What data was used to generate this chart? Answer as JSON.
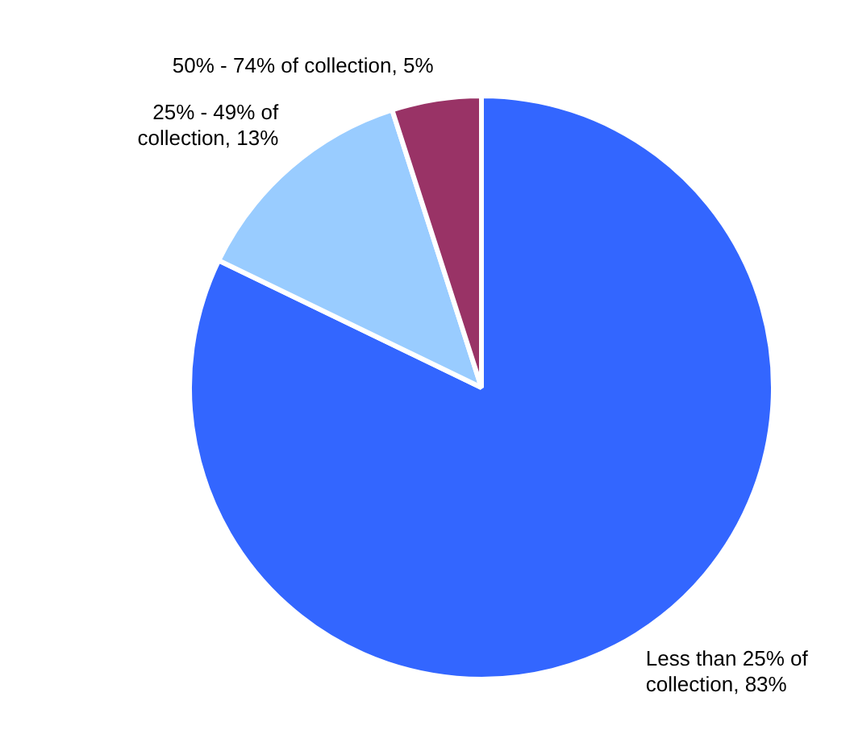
{
  "chart_data": {
    "type": "pie",
    "categories": [
      "Less than 25% of collection",
      "25% - 49% of collection",
      "50% - 74% of collection"
    ],
    "values": [
      83,
      13,
      5
    ],
    "value_labels": [
      "83%",
      "13%",
      "5%"
    ],
    "colors": [
      "#3366ff",
      "#99ccff",
      "#993366"
    ],
    "legend": false
  }
}
